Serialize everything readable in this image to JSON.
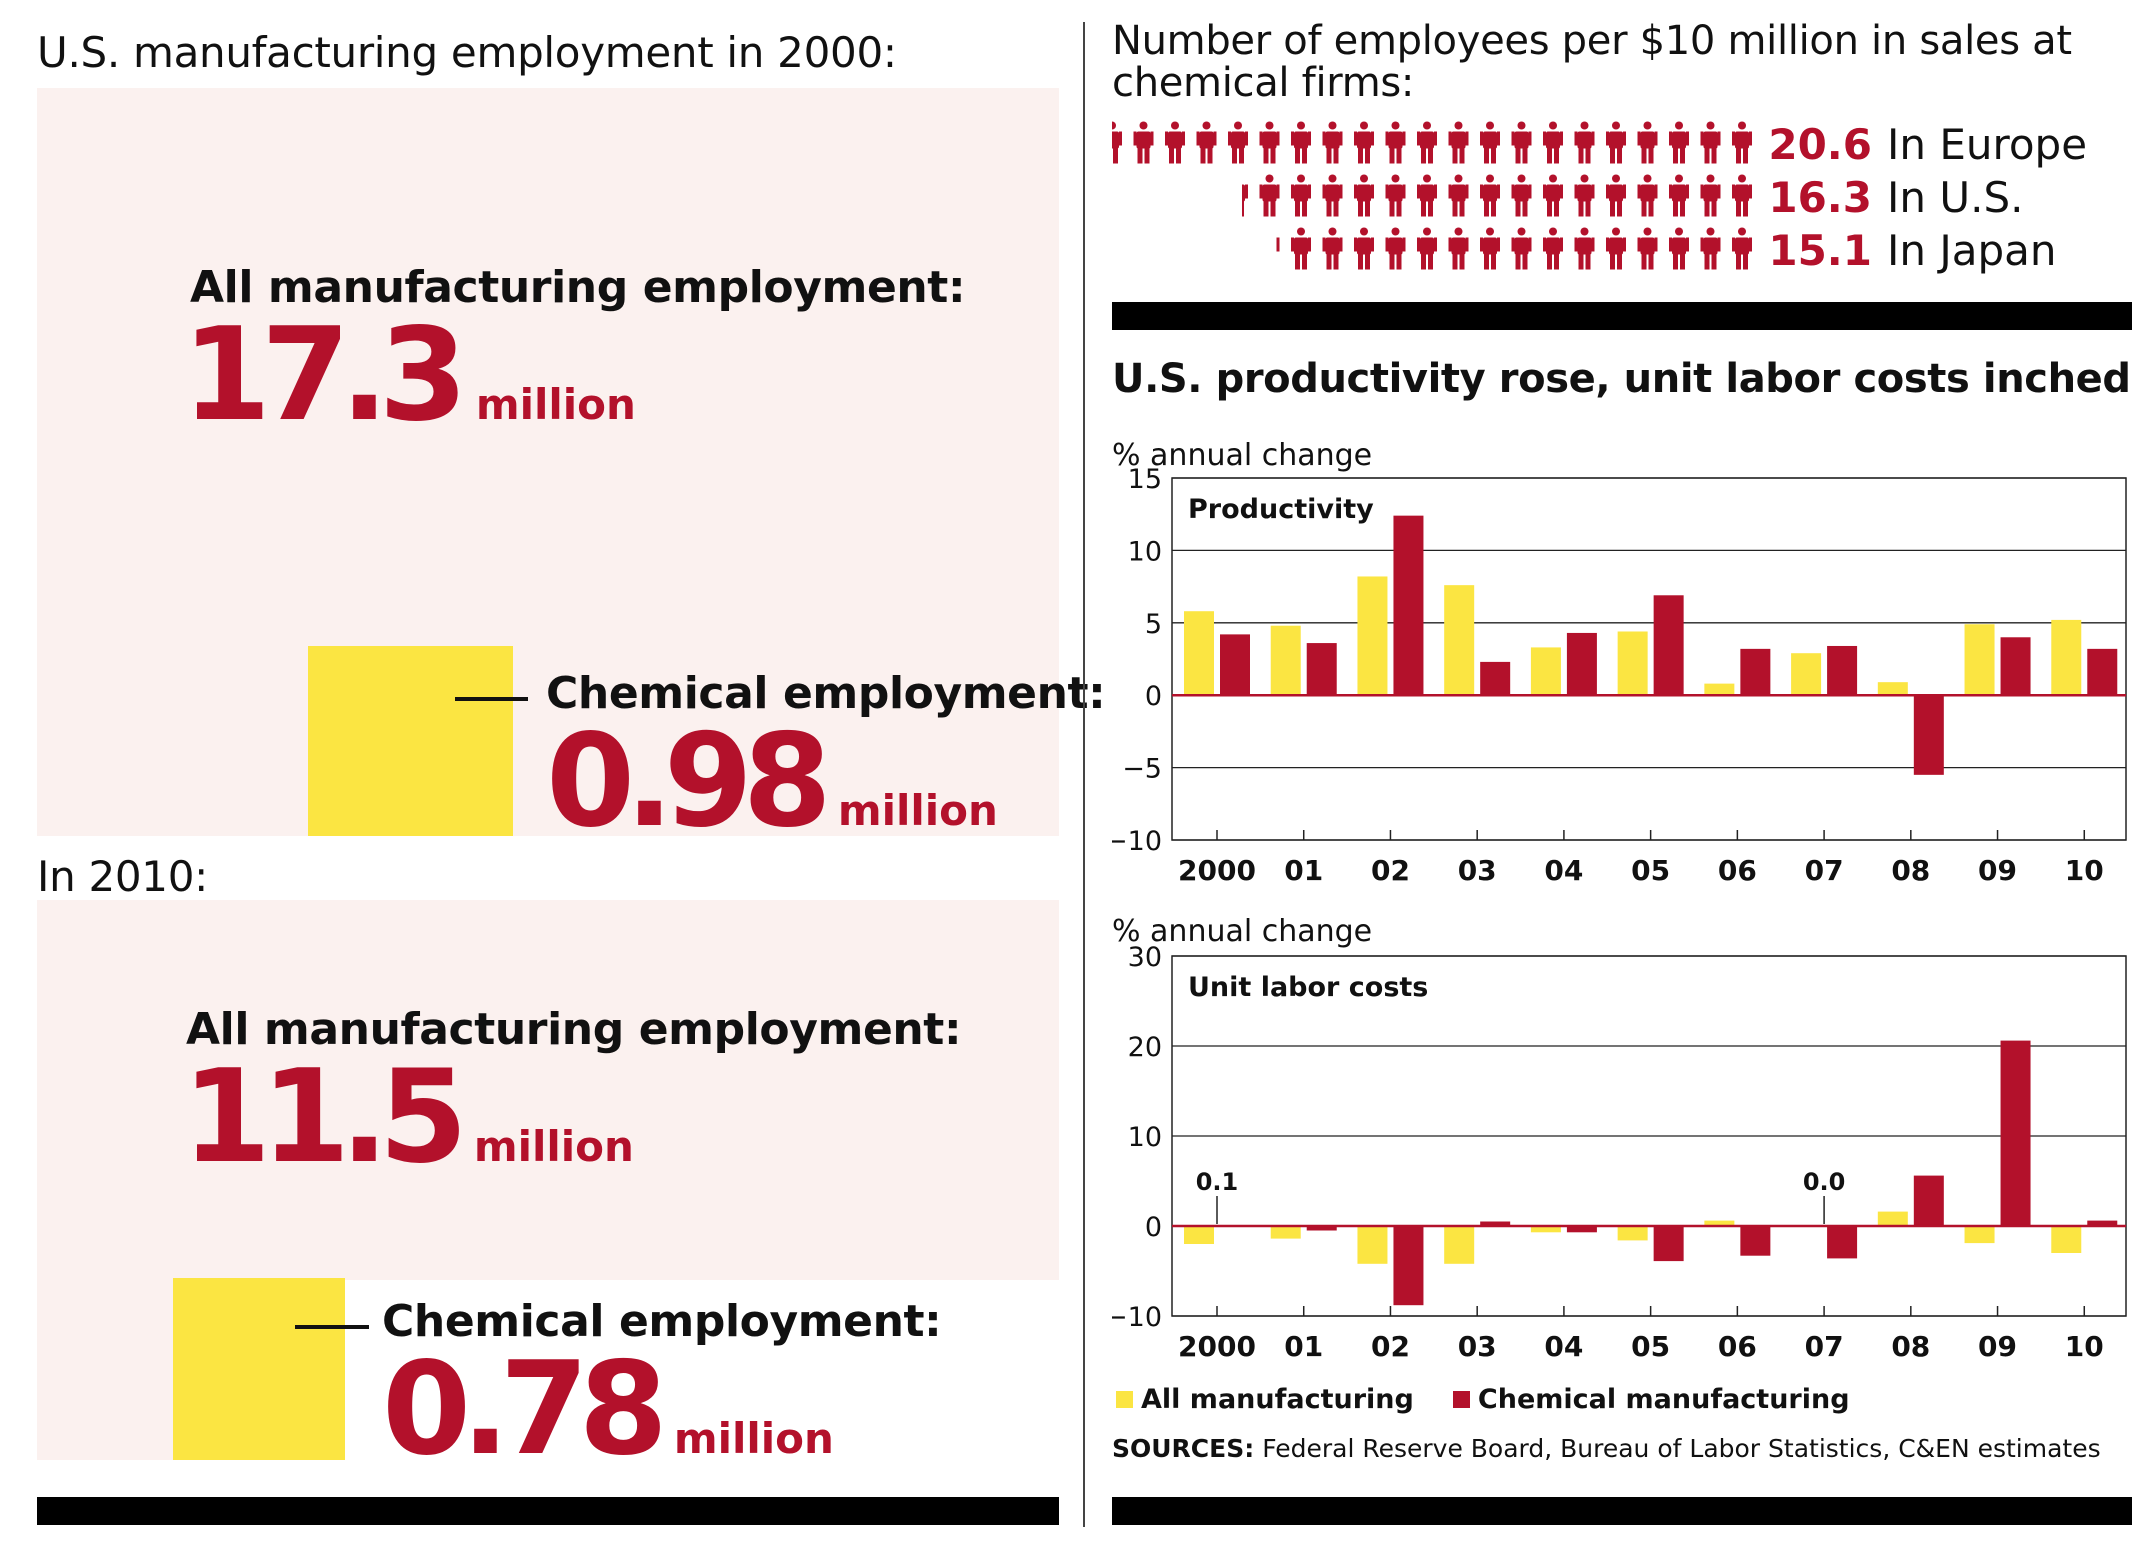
{
  "left": {
    "title_2000": "U.S. manufacturing employment in 2000:",
    "title_2010": "In 2010:",
    "y2000": {
      "all_label": "All manufacturing employment:",
      "all_value": "17.3",
      "all_unit": "million",
      "chem_label": "Chemical employment:",
      "chem_value": "0.98",
      "chem_unit": "million",
      "all_millions": 17.3,
      "chem_millions": 0.98
    },
    "y2010": {
      "all_label": "All manufacturing employment:",
      "all_value": "11.5",
      "all_unit": "million",
      "chem_label": "Chemical employment:",
      "chem_value": "0.78",
      "chem_unit": "million",
      "all_millions": 11.5,
      "chem_millions": 0.78
    }
  },
  "employees": {
    "title": "Number of employees per $10 million in sales at chemical firms:",
    "rows": [
      {
        "value": "20.6",
        "label": "In Europe",
        "count": 20.6
      },
      {
        "value": "16.3",
        "label": "In U.S.",
        "count": 16.3
      },
      {
        "value": "15.1",
        "label": "In Japan",
        "count": 15.1
      }
    ]
  },
  "colors": {
    "accent": "#b3112b",
    "yellow": "#fbe542",
    "panel": "#fbf1ef"
  },
  "charts_title": "U.S. productivity rose, unit labor costs inched up",
  "legend": {
    "all": "All manufacturing",
    "chem": "Chemical manufacturing"
  },
  "sources_label": "SOURCES:",
  "sources_text": " Federal Reserve Board, Bureau of Labor Statistics, C&EN estimates",
  "chart_data": [
    {
      "type": "bar",
      "title": "Productivity",
      "ylabel": "% annual change",
      "categories": [
        "2000",
        "01",
        "02",
        "03",
        "04",
        "05",
        "06",
        "07",
        "08",
        "09",
        "10"
      ],
      "ylim": [
        -10,
        15
      ],
      "yticks": [
        15,
        10,
        5,
        0,
        -5,
        -10
      ],
      "yticklabels": [
        "15",
        "10",
        "5",
        "0",
        "−5",
        "−10"
      ],
      "series": [
        {
          "name": "All manufacturing",
          "values": [
            5.8,
            4.8,
            8.2,
            7.6,
            3.3,
            4.4,
            0.8,
            2.9,
            0.9,
            4.9,
            5.2
          ]
        },
        {
          "name": "Chemical manufacturing",
          "values": [
            4.2,
            3.6,
            12.4,
            2.3,
            4.3,
            6.9,
            3.2,
            3.4,
            -5.5,
            4.0,
            3.2
          ]
        }
      ],
      "annotations": []
    },
    {
      "type": "bar",
      "title": "Unit labor costs",
      "ylabel": "% annual change",
      "categories": [
        "2000",
        "01",
        "02",
        "03",
        "04",
        "05",
        "06",
        "07",
        "08",
        "09",
        "10"
      ],
      "ylim": [
        -10,
        30
      ],
      "yticks": [
        30,
        20,
        10,
        0,
        -10
      ],
      "yticklabels": [
        "30",
        "20",
        "10",
        "0",
        "−10"
      ],
      "series": [
        {
          "name": "All manufacturing",
          "values": [
            -2.0,
            -1.4,
            -4.2,
            -4.2,
            -0.7,
            -1.6,
            0.6,
            0.0,
            1.6,
            -1.9,
            -3.0
          ]
        },
        {
          "name": "Chemical manufacturing",
          "values": [
            0.1,
            -0.5,
            -8.8,
            0.5,
            -0.7,
            -3.9,
            -3.3,
            -3.6,
            5.6,
            20.6,
            0.6
          ]
        }
      ],
      "annotations": [
        {
          "text": "0.1",
          "category_index": 0
        },
        {
          "text": "0.0",
          "category_index": 7
        }
      ]
    }
  ]
}
